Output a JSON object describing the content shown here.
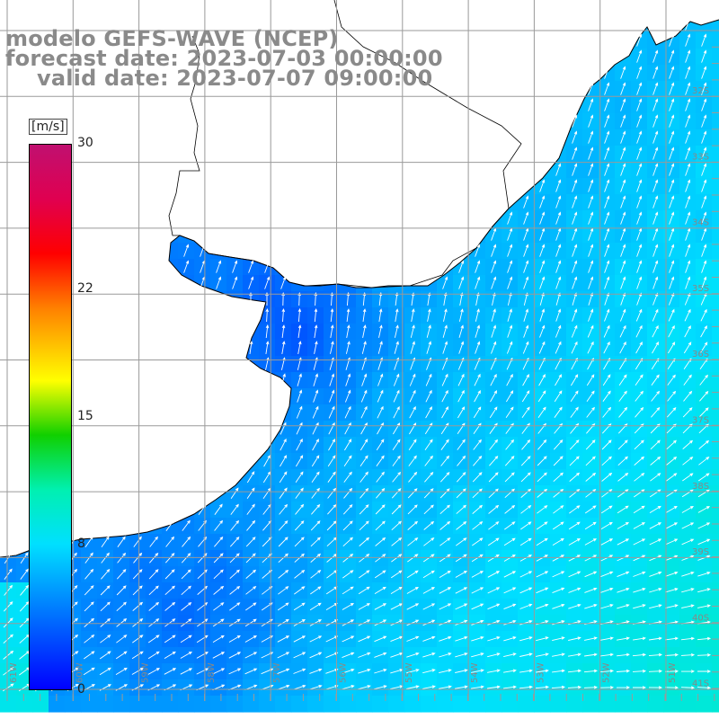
{
  "header": {
    "model_line": "modelo GEFS-WAVE (NCEP)",
    "forecast_line": "forecast date: 2023-07-03 00:00:00",
    "valid_line": "valid date: 2023-07-07 09:00:00"
  },
  "colorbar": {
    "unit": "[m/s]",
    "ticks": [
      "30",
      "22",
      "15",
      "8",
      "0"
    ],
    "tick_values": [
      30,
      22,
      15,
      8,
      0
    ],
    "vmin": 0,
    "vmax": 30,
    "colors": [
      {
        "value": 0,
        "color": "#0000ff"
      },
      {
        "value": 8,
        "color": "#00e0ff"
      },
      {
        "value": 11,
        "color": "#00f0b0"
      },
      {
        "value": 14,
        "color": "#10d000"
      },
      {
        "value": 17,
        "color": "#ffff00"
      },
      {
        "value": 21,
        "color": "#ff8000"
      },
      {
        "value": 24,
        "color": "#ff0000"
      },
      {
        "value": 27,
        "color": "#e00050"
      },
      {
        "value": 30,
        "color": "#c01070"
      }
    ]
  },
  "map": {
    "land_color": "#ffffff",
    "coast_color": "#000000",
    "grid_color": "#9a9a9a",
    "arrow_color": "#ffffff",
    "grid": true,
    "lat_labels": [
      "32S",
      "33S",
      "34S",
      "35S",
      "36S",
      "37S",
      "38S",
      "39S",
      "40S",
      "41S"
    ],
    "lon_labels": [
      "61W",
      "60W",
      "59W",
      "58W",
      "57W",
      "56W",
      "55W",
      "54W",
      "53W",
      "52W",
      "51W"
    ]
  }
}
